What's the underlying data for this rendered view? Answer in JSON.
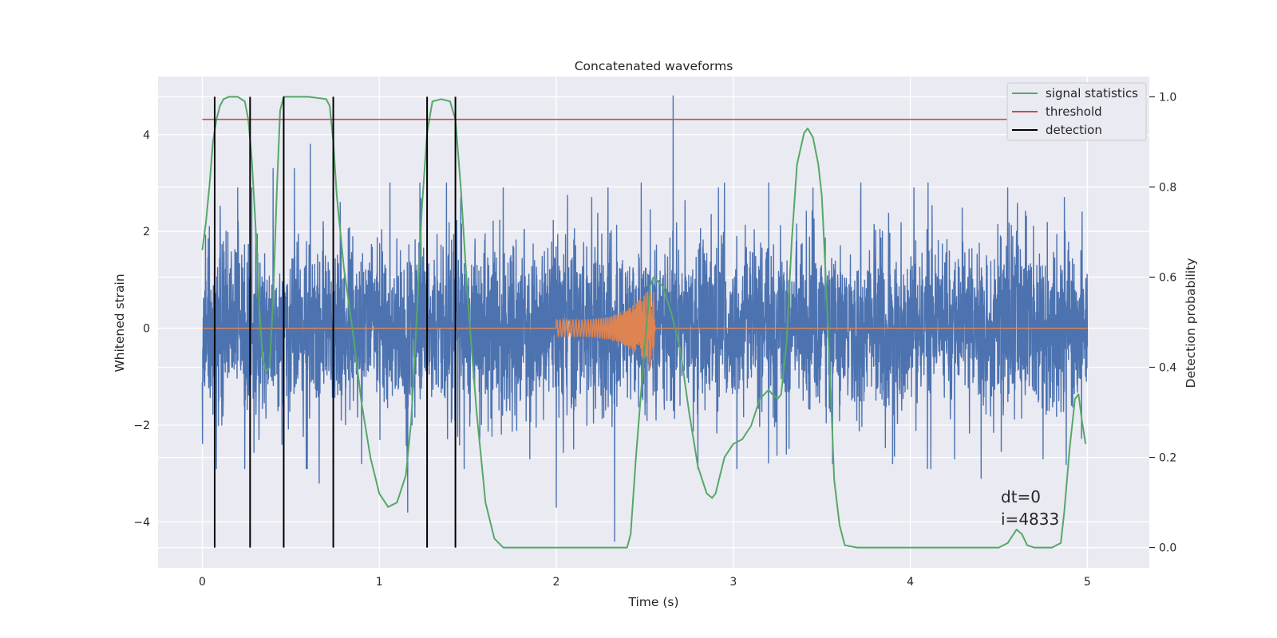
{
  "chart_data": {
    "type": "line",
    "title": "Concatenated waveforms",
    "xlabel": "Time (s)",
    "ylabel": "Whitened strain",
    "ylabel_right": "Detection probability",
    "xlim": [
      -0.25,
      5.35
    ],
    "ylim": [
      -4.95,
      5.2
    ],
    "ylim_right": [
      -0.045,
      1.045
    ],
    "xticks": [
      0,
      1,
      2,
      3,
      4,
      5
    ],
    "yticks": [
      -4,
      -2,
      0,
      2,
      4
    ],
    "yticks_right": [
      0.0,
      0.2,
      0.4,
      0.6,
      0.8,
      1.0
    ],
    "xtick_labels": [
      "0",
      "1",
      "2",
      "3",
      "4",
      "5"
    ],
    "ytick_labels": [
      "−4",
      "−2",
      "0",
      "2",
      "4"
    ],
    "ytick_right_labels": [
      "0.0",
      "0.2",
      "0.4",
      "0.6",
      "0.8",
      "1.0"
    ],
    "grid": true,
    "legend_position": "top-right",
    "annotations": [
      "dt=0",
      "i=4833"
    ],
    "colors": {
      "noise": "#4c72b0",
      "injection": "#dd8452",
      "signal_statistics": "#55a868",
      "threshold": "#c44e52",
      "detection": "#000000",
      "background": "#eaeaf2"
    },
    "noise_strain": {
      "axis": "left",
      "x_range": [
        0,
        5
      ],
      "approx_std": 0.9,
      "spikes": [
        {
          "x": 0.04,
          "y": 2.1
        },
        {
          "x": 0.11,
          "y": -2.0
        },
        {
          "x": 0.2,
          "y": 2.9
        },
        {
          "x": 0.24,
          "y": -2.9
        },
        {
          "x": 0.28,
          "y": 2.9
        },
        {
          "x": 0.32,
          "y": -2.3
        },
        {
          "x": 0.4,
          "y": 3.3
        },
        {
          "x": 0.45,
          "y": -2.4
        },
        {
          "x": 0.52,
          "y": 3.3
        },
        {
          "x": 0.61,
          "y": 3.8
        },
        {
          "x": 0.66,
          "y": -3.2
        },
        {
          "x": 0.78,
          "y": 2.6
        },
        {
          "x": 0.9,
          "y": -2.8
        },
        {
          "x": 1.06,
          "y": 3.0
        },
        {
          "x": 1.16,
          "y": -3.8
        },
        {
          "x": 1.23,
          "y": 3.0
        },
        {
          "x": 1.38,
          "y": 3.0
        },
        {
          "x": 1.46,
          "y": 2.7
        },
        {
          "x": 1.48,
          "y": -2.9
        },
        {
          "x": 1.7,
          "y": 2.9
        },
        {
          "x": 1.85,
          "y": -2.7
        },
        {
          "x": 2.0,
          "y": -3.7
        },
        {
          "x": 2.2,
          "y": 2.7
        },
        {
          "x": 2.33,
          "y": -4.4
        },
        {
          "x": 2.48,
          "y": 3.0
        },
        {
          "x": 2.66,
          "y": 4.8
        },
        {
          "x": 2.8,
          "y": -2.9
        },
        {
          "x": 2.95,
          "y": 3.0
        },
        {
          "x": 3.02,
          "y": -2.9
        },
        {
          "x": 3.2,
          "y": 3.0
        },
        {
          "x": 3.3,
          "y": -2.6
        },
        {
          "x": 3.45,
          "y": 2.9
        },
        {
          "x": 3.56,
          "y": -2.8
        },
        {
          "x": 3.72,
          "y": 3.0
        },
        {
          "x": 3.9,
          "y": -2.8
        },
        {
          "x": 4.02,
          "y": 2.9
        },
        {
          "x": 4.1,
          "y": 3.0
        },
        {
          "x": 4.25,
          "y": -2.7
        },
        {
          "x": 4.4,
          "y": -3.1
        },
        {
          "x": 4.55,
          "y": 2.9
        },
        {
          "x": 4.75,
          "y": -2.7
        },
        {
          "x": 4.87,
          "y": 2.7
        },
        {
          "x": 4.97,
          "y": 2.4
        }
      ]
    },
    "injection": {
      "axis": "left",
      "start": 2.0,
      "merger": 2.55,
      "end": 2.56,
      "amplitude_start": 0.18,
      "amplitude_peak": 0.95,
      "freq_start": 55,
      "freq_end": 250
    },
    "signal_statistics": {
      "axis": "right",
      "x": [
        0,
        0.02,
        0.04,
        0.06,
        0.08,
        0.1,
        0.12,
        0.15,
        0.2,
        0.24,
        0.26,
        0.28,
        0.3,
        0.32,
        0.34,
        0.36,
        0.38,
        0.4,
        0.42,
        0.44,
        0.46,
        0.48,
        0.5,
        0.6,
        0.7,
        0.72,
        0.74,
        0.76,
        0.8,
        0.85,
        0.9,
        0.95,
        1.0,
        1.05,
        1.1,
        1.15,
        1.18,
        1.21,
        1.24,
        1.27,
        1.3,
        1.35,
        1.4,
        1.43,
        1.46,
        1.5,
        1.55,
        1.6,
        1.65,
        1.7,
        1.8,
        2.0,
        2.2,
        2.3,
        2.4,
        2.42,
        2.45,
        2.5,
        2.53,
        2.55,
        2.6,
        2.65,
        2.7,
        2.75,
        2.8,
        2.85,
        2.88,
        2.9,
        2.95,
        3.0,
        3.05,
        3.1,
        3.15,
        3.2,
        3.22,
        3.25,
        3.27,
        3.3,
        3.33,
        3.36,
        3.4,
        3.42,
        3.45,
        3.48,
        3.5,
        3.52,
        3.55,
        3.57,
        3.6,
        3.63,
        3.7,
        3.9,
        4.2,
        4.5,
        4.55,
        4.6,
        4.63,
        4.66,
        4.7,
        4.8,
        4.85,
        4.87,
        4.9,
        4.93,
        4.95,
        4.97,
        4.99
      ],
      "y": [
        0.66,
        0.72,
        0.8,
        0.9,
        0.95,
        0.98,
        0.995,
        1.0,
        1.0,
        0.99,
        0.95,
        0.86,
        0.72,
        0.55,
        0.42,
        0.39,
        0.4,
        0.55,
        0.78,
        0.97,
        1.0,
        1.0,
        1.0,
        1.0,
        0.995,
        0.98,
        0.9,
        0.78,
        0.62,
        0.48,
        0.32,
        0.2,
        0.12,
        0.09,
        0.1,
        0.16,
        0.28,
        0.5,
        0.75,
        0.92,
        0.99,
        0.995,
        0.99,
        0.95,
        0.8,
        0.55,
        0.3,
        0.1,
        0.02,
        0.0,
        0.0,
        0.0,
        0.0,
        0.0,
        0.0,
        0.03,
        0.2,
        0.45,
        0.58,
        0.6,
        0.58,
        0.52,
        0.44,
        0.3,
        0.18,
        0.12,
        0.11,
        0.12,
        0.2,
        0.23,
        0.24,
        0.27,
        0.33,
        0.35,
        0.34,
        0.33,
        0.34,
        0.45,
        0.68,
        0.85,
        0.92,
        0.93,
        0.91,
        0.85,
        0.78,
        0.62,
        0.35,
        0.15,
        0.05,
        0.005,
        0.0,
        0.0,
        0.0,
        0.0,
        0.01,
        0.04,
        0.03,
        0.005,
        0.0,
        0.0,
        0.01,
        0.08,
        0.22,
        0.33,
        0.34,
        0.28,
        0.23
      ]
    },
    "threshold": {
      "axis": "right",
      "value": 0.95,
      "x_range": [
        0,
        5
      ]
    },
    "detections": {
      "axis": "right",
      "x": [
        0.07,
        0.27,
        0.46,
        0.74,
        1.27,
        1.43
      ],
      "y_range": [
        0.0,
        1.0
      ]
    },
    "legend": [
      {
        "label": "signal statistics",
        "series": "signal_statistics"
      },
      {
        "label": "threshold",
        "series": "threshold"
      },
      {
        "label": "detection",
        "series": "detection"
      }
    ]
  }
}
